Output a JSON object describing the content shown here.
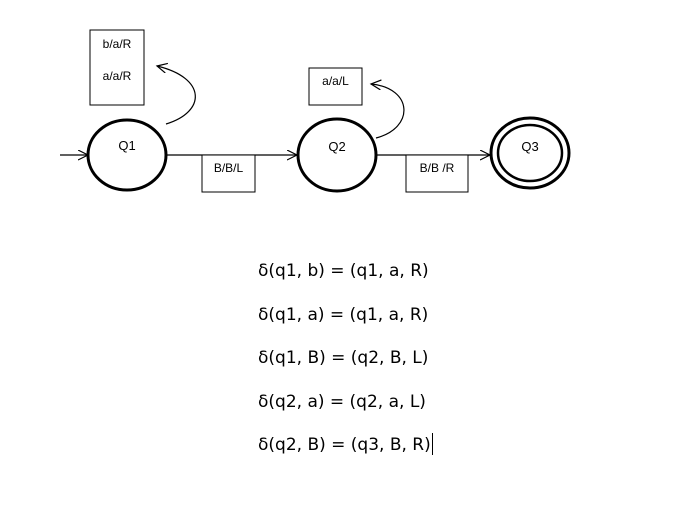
{
  "diagram": {
    "type": "turing-machine-state-diagram",
    "states": [
      {
        "id": "Q1",
        "label": "Q1",
        "start": true,
        "accepting": false
      },
      {
        "id": "Q2",
        "label": "Q2",
        "start": false,
        "accepting": false
      },
      {
        "id": "Q3",
        "label": "Q3",
        "start": false,
        "accepting": true
      }
    ],
    "edges": [
      {
        "from": "Q1",
        "to": "Q1",
        "labels": [
          "b/a/R",
          "a/a/R"
        ]
      },
      {
        "from": "Q1",
        "to": "Q2",
        "labels": [
          "B/B/L"
        ]
      },
      {
        "from": "Q2",
        "to": "Q2",
        "labels": [
          "a/a/L"
        ]
      },
      {
        "from": "Q2",
        "to": "Q3",
        "labels": [
          "B/B /R"
        ]
      }
    ]
  },
  "transitions": [
    "δ(q1, b) = (q1, a, R)",
    "δ(q1, a) = (q1, a, R)",
    "δ(q1, B) = (q2, B, L)",
    "δ(q2, a) = (q2, a, L)",
    "δ(q2, B) = (q3, B, R)"
  ],
  "colors": {
    "ink": "#000000",
    "background": "#ffffff"
  }
}
